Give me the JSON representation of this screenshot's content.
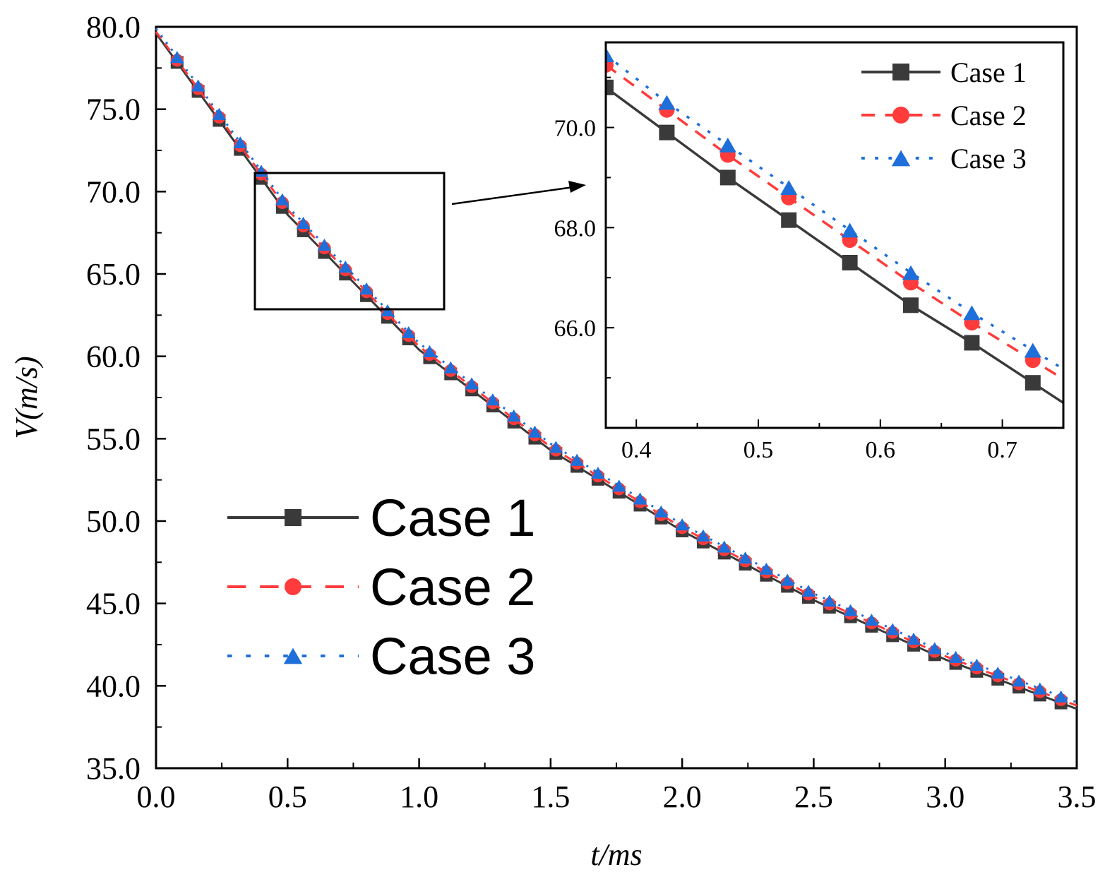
{
  "chart_data": [
    {
      "id": "main",
      "type": "line",
      "title": "",
      "xlabel": "t/ms",
      "ylabel": "V(m/s)",
      "xlim": [
        0.0,
        3.5
      ],
      "ylim": [
        35.0,
        80.0
      ],
      "x_ticks": [
        "0.0",
        "0.5",
        "1.0",
        "1.5",
        "2.0",
        "2.5",
        "3.0",
        "3.5"
      ],
      "y_ticks": [
        "35.0",
        "40.0",
        "45.0",
        "50.0",
        "55.0",
        "60.0",
        "65.0",
        "70.0",
        "75.0",
        "80.0"
      ],
      "legend_position": "bottom-left",
      "series": [
        {
          "name": "Case 1",
          "color": "#3a3a3a",
          "dash": "solid",
          "marker": "square",
          "x": [
            0.0,
            0.5,
            1.0,
            1.5,
            2.0,
            2.5,
            3.0,
            3.5
          ],
          "y": [
            79.6,
            68.6,
            60.4,
            54.3,
            49.4,
            45.2,
            41.6,
            38.6
          ]
        },
        {
          "name": "Case 2",
          "color": "#ff3b3b",
          "dash": "dashed",
          "marker": "circle",
          "x": [
            0.0,
            0.5,
            1.0,
            1.5,
            2.0,
            2.5,
            3.0,
            3.5
          ],
          "y": [
            79.7,
            68.9,
            60.6,
            54.5,
            49.6,
            45.4,
            41.8,
            38.8
          ]
        },
        {
          "name": "Case 3",
          "color": "#1e6fd9",
          "dash": "dotted",
          "marker": "triangle",
          "x": [
            0.0,
            0.5,
            1.0,
            1.5,
            2.0,
            2.5,
            3.0,
            3.5
          ],
          "y": [
            79.9,
            69.1,
            60.8,
            54.7,
            49.8,
            45.6,
            42.0,
            39.0
          ]
        }
      ]
    },
    {
      "id": "inset",
      "type": "line",
      "title": "",
      "xlabel": "",
      "ylabel": "",
      "xlim": [
        0.375,
        0.75
      ],
      "ylim": [
        64.0,
        71.7
      ],
      "x_ticks": [
        "0.4",
        "0.5",
        "0.6",
        "0.7"
      ],
      "y_ticks": [
        "66.0",
        "68.0",
        "70.0"
      ],
      "legend_position": "top-right",
      "series": [
        {
          "name": "Case 1",
          "color": "#3a3a3a",
          "dash": "solid",
          "marker": "square",
          "x": [
            0.375,
            0.425,
            0.475,
            0.525,
            0.575,
            0.625,
            0.675,
            0.725
          ],
          "y": [
            70.8,
            69.9,
            69.0,
            68.15,
            67.3,
            66.45,
            65.7,
            64.9
          ]
        },
        {
          "name": "Case 2",
          "color": "#ff3b3b",
          "dash": "dashed",
          "marker": "circle",
          "x": [
            0.375,
            0.425,
            0.475,
            0.525,
            0.575,
            0.625,
            0.675,
            0.725
          ],
          "y": [
            71.25,
            70.35,
            69.45,
            68.6,
            67.75,
            66.9,
            66.1,
            65.35
          ]
        },
        {
          "name": "Case 3",
          "color": "#1e6fd9",
          "dash": "dotted",
          "marker": "triangle",
          "x": [
            0.375,
            0.425,
            0.475,
            0.525,
            0.575,
            0.625,
            0.675,
            0.725
          ],
          "y": [
            71.45,
            70.5,
            69.65,
            68.8,
            67.95,
            67.1,
            66.3,
            65.55
          ]
        }
      ]
    }
  ]
}
